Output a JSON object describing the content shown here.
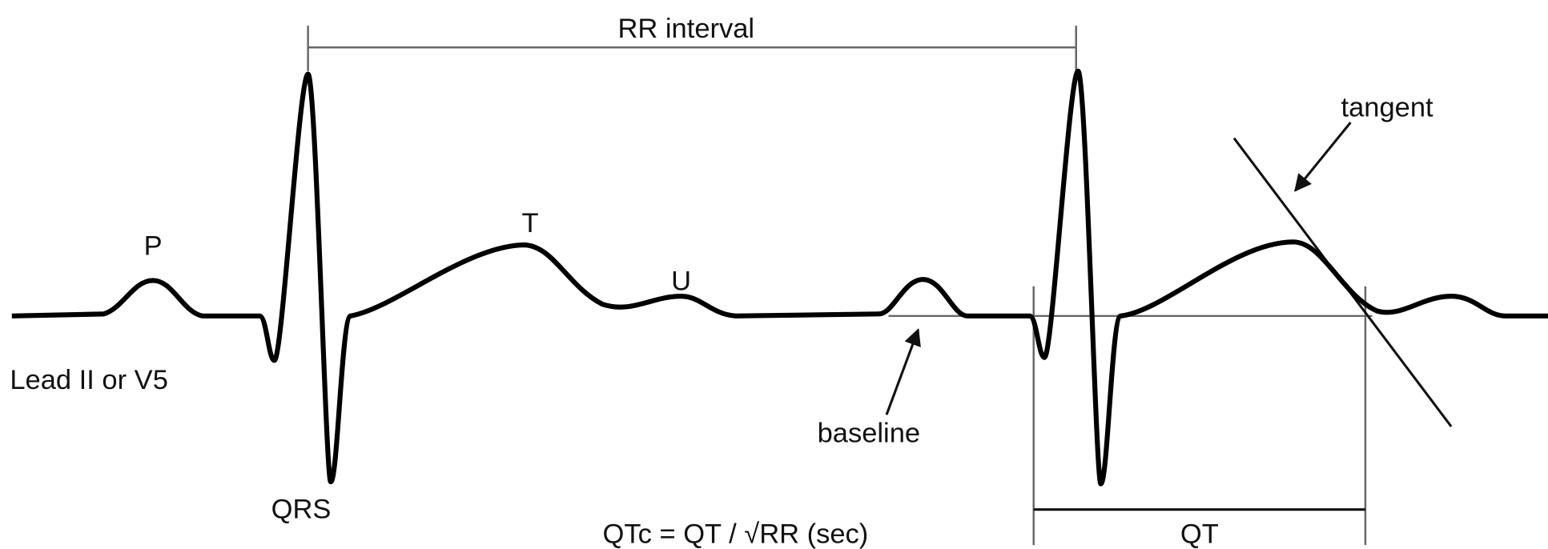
{
  "title": "RR interval",
  "waves": {
    "p": "P",
    "qrs": "QRS",
    "t": "T",
    "u": "U"
  },
  "lead": "Lead II or V5",
  "annotations": {
    "baseline": "baseline",
    "tangent": "tangent"
  },
  "qt_label": "QT",
  "formula": "QTc = QT / √RR (sec)"
}
